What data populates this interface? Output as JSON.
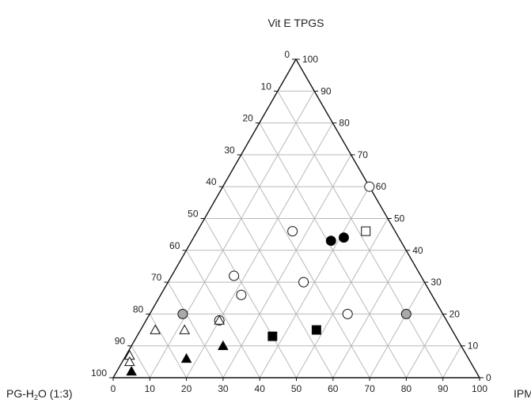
{
  "chart_data": {
    "type": "scatter",
    "subtype": "ternary",
    "title": "",
    "axes": {
      "top": {
        "label": "Vit E TPGS"
      },
      "left": {
        "label_pre": "PG-H",
        "label_sub": "2",
        "label_post": "O (1:3)"
      },
      "right": {
        "label": "IPM"
      }
    },
    "ticks": {
      "bottom": [
        "0",
        "10",
        "20",
        "30",
        "40",
        "50",
        "60",
        "70",
        "80",
        "90",
        "100"
      ],
      "right": [
        "0",
        "10",
        "20",
        "30",
        "40",
        "50",
        "60",
        "70",
        "80",
        "90",
        "100"
      ],
      "left": [
        "0",
        "10",
        "20",
        "30",
        "40",
        "50",
        "60",
        "70",
        "80",
        "90",
        "100"
      ]
    },
    "grid": true,
    "series": [
      {
        "marker": "circle",
        "fill": "#ffffff",
        "points": [
          [
            40,
            60
          ],
          [
            26,
            46
          ],
          [
            17,
            32
          ],
          [
            22,
            26
          ],
          [
            20,
            18
          ],
          [
            37,
            30
          ],
          [
            54,
            20
          ]
        ]
      },
      {
        "marker": "circle",
        "fill": "#000000",
        "points": [
          [
            41,
            44
          ],
          [
            38,
            43
          ]
        ]
      },
      {
        "marker": "circle",
        "fill": "#a9a9a9",
        "points": [
          [
            9,
            20
          ],
          [
            70,
            20
          ]
        ]
      },
      {
        "marker": "square",
        "fill": "#ffffff",
        "points": [
          [
            46,
            46
          ]
        ]
      },
      {
        "marker": "square",
        "fill": "#000000",
        "points": [
          [
            48,
            15
          ],
          [
            37,
            13
          ]
        ]
      },
      {
        "marker": "triangle",
        "fill": "#ffffff",
        "points": [
          [
            4,
            15
          ],
          [
            12,
            15
          ],
          [
            20,
            18
          ],
          [
            1,
            7
          ],
          [
            2,
            5
          ]
        ]
      },
      {
        "marker": "triangle",
        "fill": "#000000",
        "points": [
          [
            25,
            10
          ],
          [
            17,
            6
          ],
          [
            4,
            2
          ]
        ]
      }
    ]
  }
}
